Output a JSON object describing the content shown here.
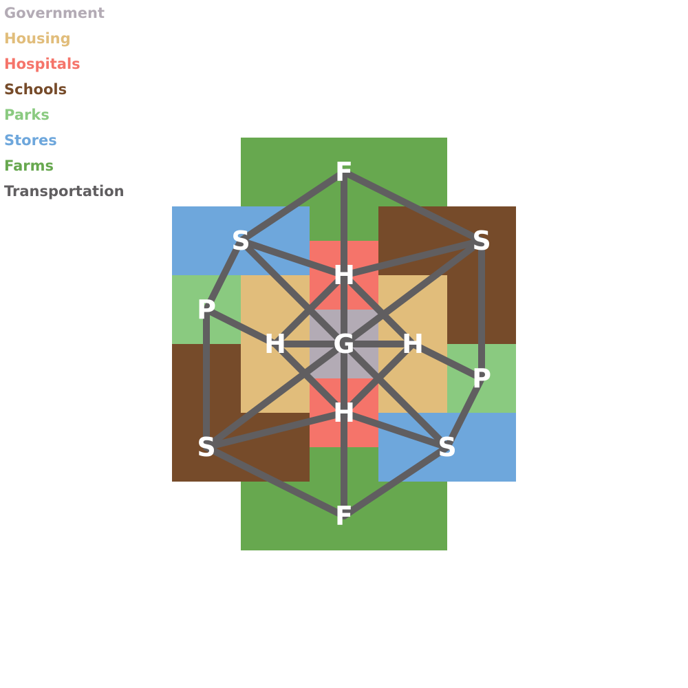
{
  "legend": [
    {
      "label": "Government",
      "color": "#b3abb5"
    },
    {
      "label": "Housing",
      "color": "#e1bd7b"
    },
    {
      "label": "Hospitals",
      "color": "#f5746a"
    },
    {
      "label": "Schools",
      "color": "#764b2a"
    },
    {
      "label": "Parks",
      "color": "#8aca80"
    },
    {
      "label": "Stores",
      "color": "#6ea7dc"
    },
    {
      "label": "Farms",
      "color": "#67a84f"
    },
    {
      "label": "Transportation",
      "color": "#605e60"
    }
  ],
  "nodes": [
    {
      "id": "G",
      "label": "G",
      "zone": "Government"
    },
    {
      "id": "H_top",
      "label": "H",
      "zone": "Hospitals"
    },
    {
      "id": "H_bottom",
      "label": "H",
      "zone": "Hospitals"
    },
    {
      "id": "H_left",
      "label": "H",
      "zone": "Housing"
    },
    {
      "id": "H_right",
      "label": "H",
      "zone": "Housing"
    },
    {
      "id": "F_top",
      "label": "F",
      "zone": "Farms"
    },
    {
      "id": "F_bottom",
      "label": "F",
      "zone": "Farms"
    },
    {
      "id": "S_nw",
      "label": "S",
      "zone": "Stores"
    },
    {
      "id": "S_ne",
      "label": "S",
      "zone": "Schools"
    },
    {
      "id": "S_sw",
      "label": "S",
      "zone": "Schools"
    },
    {
      "id": "S_se",
      "label": "S",
      "zone": "Stores"
    },
    {
      "id": "P_left",
      "label": "P",
      "zone": "Parks"
    },
    {
      "id": "P_right",
      "label": "P",
      "zone": "Parks"
    }
  ],
  "edges": [
    [
      "F_top",
      "S_nw"
    ],
    [
      "F_top",
      "S_ne"
    ],
    [
      "F_top",
      "H_top"
    ],
    [
      "S_nw",
      "H_top"
    ],
    [
      "S_nw",
      "G"
    ],
    [
      "S_nw",
      "P_left"
    ],
    [
      "S_ne",
      "H_top"
    ],
    [
      "S_ne",
      "G"
    ],
    [
      "S_ne",
      "P_right"
    ],
    [
      "H_top",
      "G"
    ],
    [
      "H_top",
      "H_left"
    ],
    [
      "H_top",
      "H_right"
    ],
    [
      "H_left",
      "G"
    ],
    [
      "H_right",
      "G"
    ],
    [
      "P_left",
      "H_left"
    ],
    [
      "P_left",
      "S_sw"
    ],
    [
      "P_right",
      "H_right"
    ],
    [
      "P_right",
      "S_se"
    ],
    [
      "G",
      "H_bottom"
    ],
    [
      "G",
      "S_sw"
    ],
    [
      "G",
      "S_se"
    ],
    [
      "H_left",
      "H_bottom"
    ],
    [
      "H_right",
      "H_bottom"
    ],
    [
      "S_sw",
      "H_bottom"
    ],
    [
      "S_se",
      "H_bottom"
    ],
    [
      "S_sw",
      "F_bottom"
    ],
    [
      "S_se",
      "F_bottom"
    ],
    [
      "H_bottom",
      "F_bottom"
    ]
  ],
  "edge_color": "#605e60"
}
